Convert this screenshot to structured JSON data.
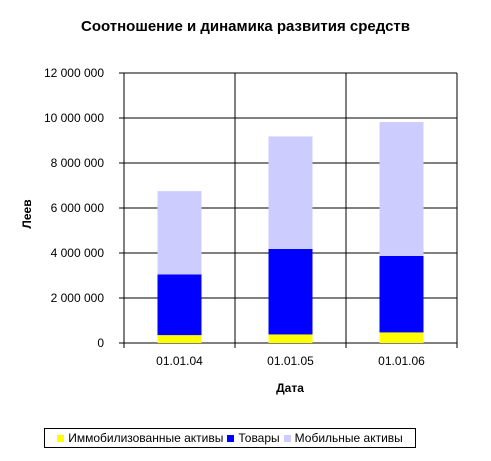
{
  "chart_data": {
    "type": "bar",
    "stacked": true,
    "title": "Соотношение и динамика развития средств",
    "xlabel": "Дата",
    "ylabel": "Леев",
    "categories": [
      "01.01.04",
      "01.01.05",
      "01.01.06"
    ],
    "ylim": [
      0,
      12000000
    ],
    "yticks": [
      0,
      2000000,
      4000000,
      6000000,
      8000000,
      10000000,
      12000000
    ],
    "ytick_labels": [
      "0",
      "2 000 000",
      "4 000 000",
      "6 000 000",
      "8 000 000",
      "10 000 000",
      "12 000 000"
    ],
    "grid": true,
    "legend_position": "bottom",
    "series": [
      {
        "name": "Иммобилизованные активы",
        "color": "#ffff00",
        "values": [
          350000,
          380000,
          470000
        ]
      },
      {
        "name": "Товары",
        "color": "#0000ff",
        "values": [
          2700000,
          3800000,
          3400000
        ]
      },
      {
        "name": "Мобильные активы",
        "color": "#ccccff",
        "values": [
          3700000,
          5000000,
          5950000
        ]
      }
    ]
  }
}
